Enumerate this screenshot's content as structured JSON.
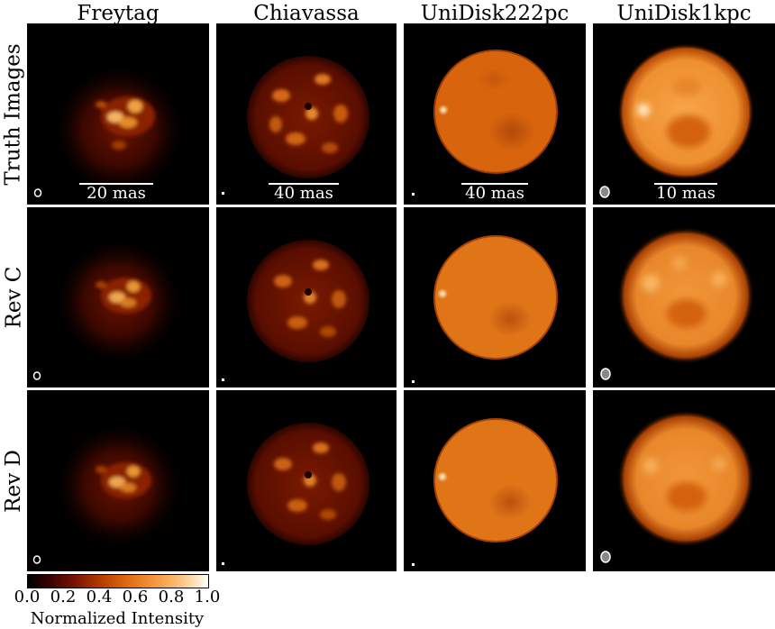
{
  "columns": [
    "Freytag",
    "Chiavassa",
    "UniDisk222pc",
    "UniDisk1kpc"
  ],
  "rows": [
    "Truth Images",
    "Rev C",
    "Rev D"
  ],
  "scale_bars": [
    "20 mas",
    "40 mas",
    "40 mas",
    "10 mas"
  ],
  "colorbar": {
    "label": "Normalized Intensity",
    "ticks": [
      "0.0",
      "0.2",
      "0.4",
      "0.6",
      "0.8",
      "1.0"
    ],
    "colormap": "afmhot",
    "range": [
      0.0,
      1.0
    ]
  }
}
